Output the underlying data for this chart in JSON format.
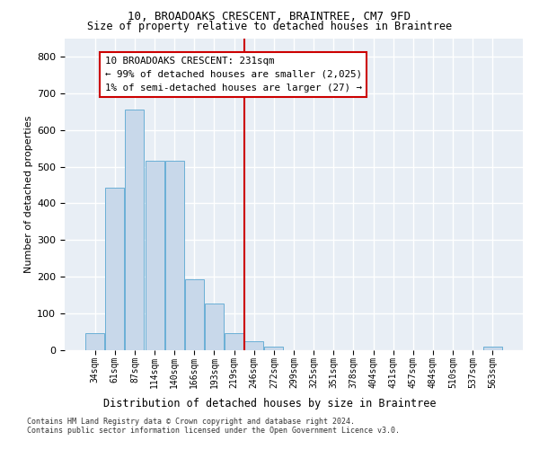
{
  "title": "10, BROADOAKS CRESCENT, BRAINTREE, CM7 9FD",
  "subtitle": "Size of property relative to detached houses in Braintree",
  "xlabel": "Distribution of detached houses by size in Braintree",
  "ylabel": "Number of detached properties",
  "bar_labels": [
    "34sqm",
    "61sqm",
    "87sqm",
    "114sqm",
    "140sqm",
    "166sqm",
    "193sqm",
    "219sqm",
    "246sqm",
    "272sqm",
    "299sqm",
    "325sqm",
    "351sqm",
    "378sqm",
    "404sqm",
    "431sqm",
    "457sqm",
    "484sqm",
    "510sqm",
    "537sqm",
    "563sqm"
  ],
  "bar_heights": [
    47,
    443,
    656,
    515,
    515,
    193,
    126,
    47,
    25,
    10,
    0,
    0,
    0,
    0,
    0,
    0,
    0,
    0,
    0,
    0,
    10
  ],
  "bar_color": "#c8d8ea",
  "bar_edge_color": "#6aafd6",
  "vline_color": "#cc0000",
  "annotation_text": "10 BROADOAKS CRESCENT: 231sqm\n← 99% of detached houses are smaller (2,025)\n1% of semi-detached houses are larger (27) →",
  "annotation_box_facecolor": "#ffffff",
  "annotation_box_edgecolor": "#cc0000",
  "ylim": [
    0,
    850
  ],
  "yticks": [
    0,
    100,
    200,
    300,
    400,
    500,
    600,
    700,
    800
  ],
  "footer1": "Contains HM Land Registry data © Crown copyright and database right 2024.",
  "footer2": "Contains public sector information licensed under the Open Government Licence v3.0.",
  "fig_bg_color": "#ffffff",
  "plot_bg_color": "#e8eef5"
}
